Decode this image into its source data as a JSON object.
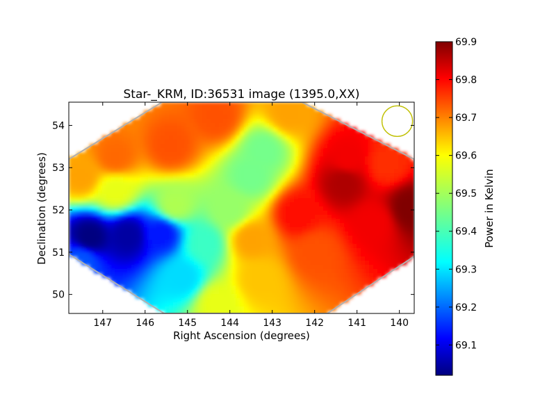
{
  "chart_data": {
    "type": "heatmap",
    "title": "Star-_KRM, ID:36531 image (1395.0,XX)",
    "xlabel": "Right Ascension (degrees)",
    "ylabel": "Declination (degrees)",
    "xlim": [
      147.8,
      139.65
    ],
    "ylim": [
      49.55,
      54.55
    ],
    "x_ticks": [
      147,
      146,
      145,
      144,
      143,
      142,
      141,
      140
    ],
    "y_ticks": [
      50,
      51,
      52,
      53,
      54
    ],
    "colorbar": {
      "label": "Power in Kelvin",
      "range": [
        69.02,
        69.9
      ],
      "ticks": [
        "69.1",
        "69.2",
        "69.3",
        "69.4",
        "69.5",
        "69.6",
        "69.7",
        "69.8",
        "69.9"
      ],
      "colormap": "jet"
    },
    "field_outline_ra_dec": [
      [
        145.6,
        54.55
      ],
      [
        142.3,
        54.55
      ],
      [
        139.65,
        53.2
      ],
      [
        139.65,
        50.9
      ],
      [
        141.7,
        49.55
      ],
      [
        145.55,
        49.55
      ],
      [
        147.8,
        50.95
      ],
      [
        147.8,
        53.2
      ]
    ],
    "beam_marker": {
      "ra": 140.05,
      "dec": 54.1,
      "color": "#bfbf00"
    },
    "surface_samples": [
      {
        "ra": 147.3,
        "dec": 51.35,
        "v": 69.02
      },
      {
        "ra": 146.4,
        "dec": 51.4,
        "v": 69.05
      },
      {
        "ra": 145.6,
        "dec": 51.45,
        "v": 69.15
      },
      {
        "ra": 147.5,
        "dec": 50.8,
        "v": 69.2
      },
      {
        "ra": 145.1,
        "dec": 50.4,
        "v": 69.32
      },
      {
        "ra": 144.6,
        "dec": 51.2,
        "v": 69.4
      },
      {
        "ra": 145.3,
        "dec": 52.1,
        "v": 69.5
      },
      {
        "ra": 146.7,
        "dec": 52.45,
        "v": 69.55
      },
      {
        "ra": 147.5,
        "dec": 52.8,
        "v": 69.65
      },
      {
        "ra": 146.7,
        "dec": 53.25,
        "v": 69.7
      },
      {
        "ra": 144.3,
        "dec": 54.2,
        "v": 69.72
      },
      {
        "ra": 143.2,
        "dec": 53.4,
        "v": 69.45
      },
      {
        "ra": 143.5,
        "dec": 52.8,
        "v": 69.45
      },
      {
        "ra": 144.0,
        "dec": 52.0,
        "v": 69.48
      },
      {
        "ra": 142.6,
        "dec": 54.3,
        "v": 69.65
      },
      {
        "ra": 141.3,
        "dec": 52.65,
        "v": 69.86
      },
      {
        "ra": 139.75,
        "dec": 52.05,
        "v": 69.9
      },
      {
        "ra": 140.6,
        "dec": 51.7,
        "v": 69.8
      },
      {
        "ra": 142.4,
        "dec": 51.9,
        "v": 69.78
      },
      {
        "ra": 142.0,
        "dec": 51.0,
        "v": 69.72
      },
      {
        "ra": 143.5,
        "dec": 51.3,
        "v": 69.65
      },
      {
        "ra": 143.3,
        "dec": 50.35,
        "v": 69.62
      },
      {
        "ra": 144.3,
        "dec": 49.8,
        "v": 69.55
      },
      {
        "ra": 141.2,
        "dec": 53.2,
        "v": 69.8
      },
      {
        "ra": 140.3,
        "dec": 53.1,
        "v": 69.75
      },
      {
        "ra": 145.4,
        "dec": 53.5,
        "v": 69.72
      }
    ]
  }
}
